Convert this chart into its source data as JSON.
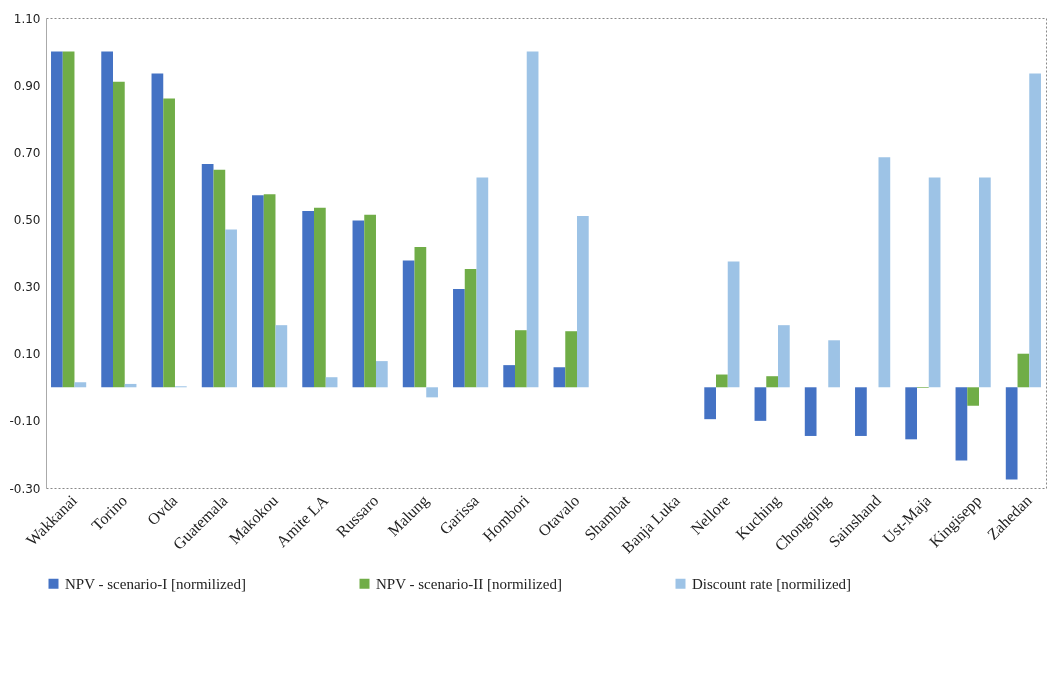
{
  "chart_data": {
    "type": "bar",
    "categories": [
      "Wakkanai",
      "Torino",
      "Ovda",
      "Guatemala",
      "Makokou",
      "Amite LA",
      "Russaro",
      "Malung",
      "Garissa",
      "Hombori",
      "Otavalo",
      "Shambat",
      "Banja Luka",
      "Nellore",
      "Kuching",
      "Chongqing",
      "Sainshand",
      "Ust-Maja",
      "Kingisepp",
      "Zahedan"
    ],
    "series": [
      {
        "name": "NPV - scenario-I [normilized]",
        "color": "#4472c4",
        "values": [
          1.0,
          1.0,
          0.935,
          0.665,
          0.572,
          0.525,
          0.497,
          0.378,
          0.293,
          0.066,
          0.06,
          0,
          0,
          -0.095,
          -0.1,
          -0.145,
          -0.145,
          -0.155,
          -0.218,
          -0.275
        ]
      },
      {
        "name": "NPV - scenario-II [normilized]",
        "color": "#70ad47",
        "values": [
          1.0,
          0.91,
          0.86,
          0.648,
          0.575,
          0.535,
          0.514,
          0.418,
          0.352,
          0.17,
          0.167,
          0,
          0,
          0.038,
          0.033,
          0,
          0,
          -0.002,
          -0.055,
          0.1
        ]
      },
      {
        "name": "Discount rate [normilized]",
        "color": "#9dc3e6",
        "values": [
          0.015,
          0.01,
          0.003,
          0.47,
          0.185,
          0.03,
          0.078,
          -0.03,
          0.625,
          1.0,
          0.51,
          0,
          0,
          0.375,
          0.185,
          0.14,
          0.685,
          0.625,
          0.625,
          0.935
        ]
      }
    ],
    "ylim": [
      -0.3,
      1.1
    ],
    "yticks": [
      {
        "value": -0.3,
        "label": "-0.30"
      },
      {
        "value": -0.1,
        "label": "-0.10"
      },
      {
        "value": 0.1,
        "label": "0.10"
      },
      {
        "value": 0.3,
        "label": "0.30"
      },
      {
        "value": 0.5,
        "label": "0.50"
      },
      {
        "value": 0.7,
        "label": "0.70"
      },
      {
        "value": 0.9,
        "label": "0.90"
      },
      {
        "value": 1.1,
        "label": "1.10"
      }
    ],
    "legend": "bottom"
  }
}
